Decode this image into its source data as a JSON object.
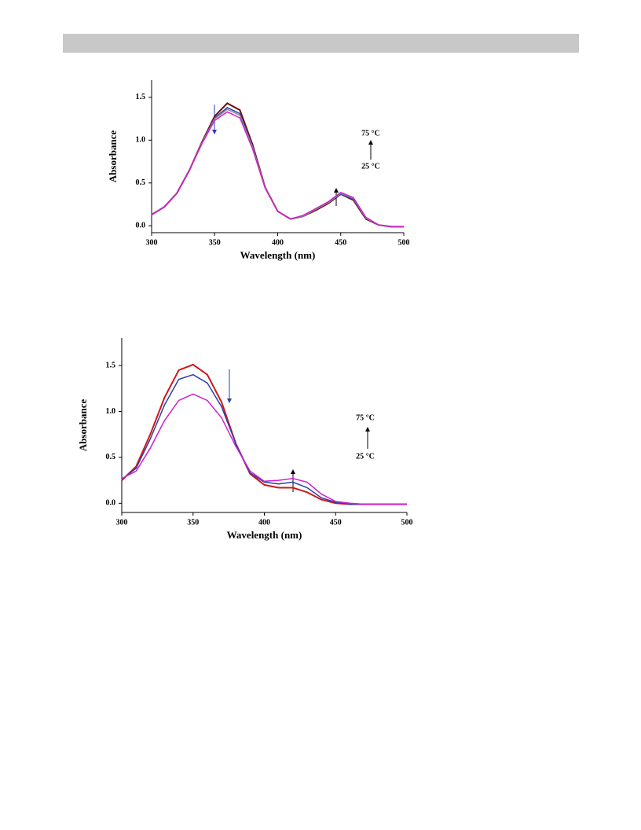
{
  "chart_data": [
    {
      "type": "line",
      "x_label": "Wavelength (nm)",
      "y_label": "Absorbance",
      "x": [
        300,
        310,
        320,
        330,
        340,
        350,
        360,
        370,
        380,
        390,
        400,
        410,
        420,
        430,
        440,
        450,
        460,
        470,
        480,
        490,
        500
      ],
      "series": [
        {
          "color": "#6b0f0f",
          "values": [
            0.13,
            0.22,
            0.38,
            0.65,
            0.98,
            1.28,
            1.43,
            1.35,
            0.95,
            0.45,
            0.17,
            0.08,
            0.11,
            0.18,
            0.26,
            0.37,
            0.3,
            0.08,
            0.01,
            -0.01,
            -0.01
          ]
        },
        {
          "color": "#2a3fa8",
          "values": [
            0.13,
            0.22,
            0.38,
            0.65,
            0.97,
            1.26,
            1.38,
            1.31,
            0.93,
            0.45,
            0.17,
            0.08,
            0.11,
            0.19,
            0.27,
            0.37,
            0.31,
            0.09,
            0.01,
            -0.01,
            -0.01
          ]
        },
        {
          "color": "#8a8a8a",
          "values": [
            0.13,
            0.22,
            0.38,
            0.65,
            0.97,
            1.25,
            1.36,
            1.29,
            0.92,
            0.45,
            0.17,
            0.08,
            0.11,
            0.19,
            0.27,
            0.38,
            0.32,
            0.09,
            0.01,
            -0.01,
            -0.01
          ]
        },
        {
          "color": "#d020d0",
          "values": [
            0.13,
            0.22,
            0.38,
            0.65,
            0.96,
            1.23,
            1.33,
            1.26,
            0.9,
            0.44,
            0.17,
            0.08,
            0.12,
            0.2,
            0.28,
            0.39,
            0.33,
            0.1,
            0.01,
            -0.01,
            -0.01
          ]
        }
      ],
      "xlim": [
        300,
        500
      ],
      "xticks": [
        300,
        350,
        400,
        450,
        500
      ],
      "ylim": [
        -0.08,
        1.7
      ],
      "yticks": [
        {
          "value": 0,
          "label": "0.0"
        },
        0.5,
        {
          "value": 1,
          "label": "1.0"
        },
        1.5
      ],
      "annotations": [
        "75 °C",
        "25 °C"
      ]
    },
    {
      "type": "line",
      "x_label": "Wavelength (nm)",
      "y_label": "Absorbance",
      "x": [
        300,
        310,
        320,
        330,
        340,
        350,
        360,
        370,
        380,
        390,
        400,
        410,
        420,
        430,
        440,
        450,
        460,
        470,
        480,
        490,
        500
      ],
      "series": [
        {
          "color": "#d01818",
          "values": [
            0.25,
            0.4,
            0.75,
            1.15,
            1.45,
            1.51,
            1.4,
            1.1,
            0.65,
            0.32,
            0.2,
            0.17,
            0.17,
            0.12,
            0.04,
            0.0,
            -0.01,
            -0.01,
            -0.01,
            -0.01,
            -0.01
          ]
        },
        {
          "color": "#2a3fa8",
          "values": [
            0.26,
            0.38,
            0.7,
            1.07,
            1.35,
            1.4,
            1.31,
            1.05,
            0.65,
            0.33,
            0.23,
            0.21,
            0.23,
            0.17,
            0.06,
            0.01,
            -0.01,
            -0.01,
            -0.01,
            -0.01,
            -0.01
          ]
        },
        {
          "color": "#d020d0",
          "values": [
            0.27,
            0.35,
            0.6,
            0.9,
            1.12,
            1.19,
            1.12,
            0.93,
            0.62,
            0.35,
            0.24,
            0.25,
            0.27,
            0.23,
            0.1,
            0.02,
            0.0,
            -0.01,
            -0.01,
            -0.01,
            -0.01
          ]
        }
      ],
      "xlim": [
        300,
        500
      ],
      "xticks": [
        300,
        350,
        400,
        450,
        500
      ],
      "ylim": [
        -0.1,
        1.8
      ],
      "yticks": [
        {
          "value": 0,
          "label": "0.0"
        },
        0.5,
        {
          "value": 1,
          "label": "1.0"
        },
        1.5
      ],
      "annotations": [
        "75 °C",
        "25 °C"
      ]
    }
  ]
}
